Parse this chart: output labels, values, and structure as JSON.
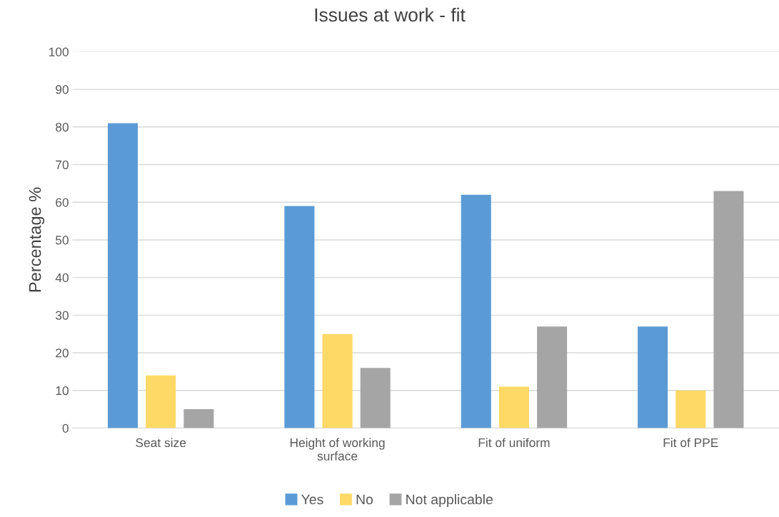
{
  "chart_data": {
    "type": "bar",
    "title": "Issues at work - fit",
    "ylabel": "Percentage %",
    "categories": [
      "Seat size",
      "Height of working\nsurface",
      "Fit of uniform",
      "Fit of PPE"
    ],
    "series": [
      {
        "name": "Yes",
        "color": "#5b9bd5",
        "values": [
          81,
          59,
          62,
          27
        ]
      },
      {
        "name": "No",
        "color": "#ffd966",
        "values": [
          14,
          25,
          11,
          10
        ]
      },
      {
        "name": "Not applicable",
        "color": "#a5a5a5",
        "values": [
          5,
          16,
          27,
          63
        ]
      }
    ],
    "ylim": [
      0,
      100
    ],
    "yticks": [
      0,
      10,
      20,
      30,
      40,
      50,
      60,
      70,
      80,
      90,
      100
    ],
    "grid": "y",
    "legend": "bottom"
  }
}
